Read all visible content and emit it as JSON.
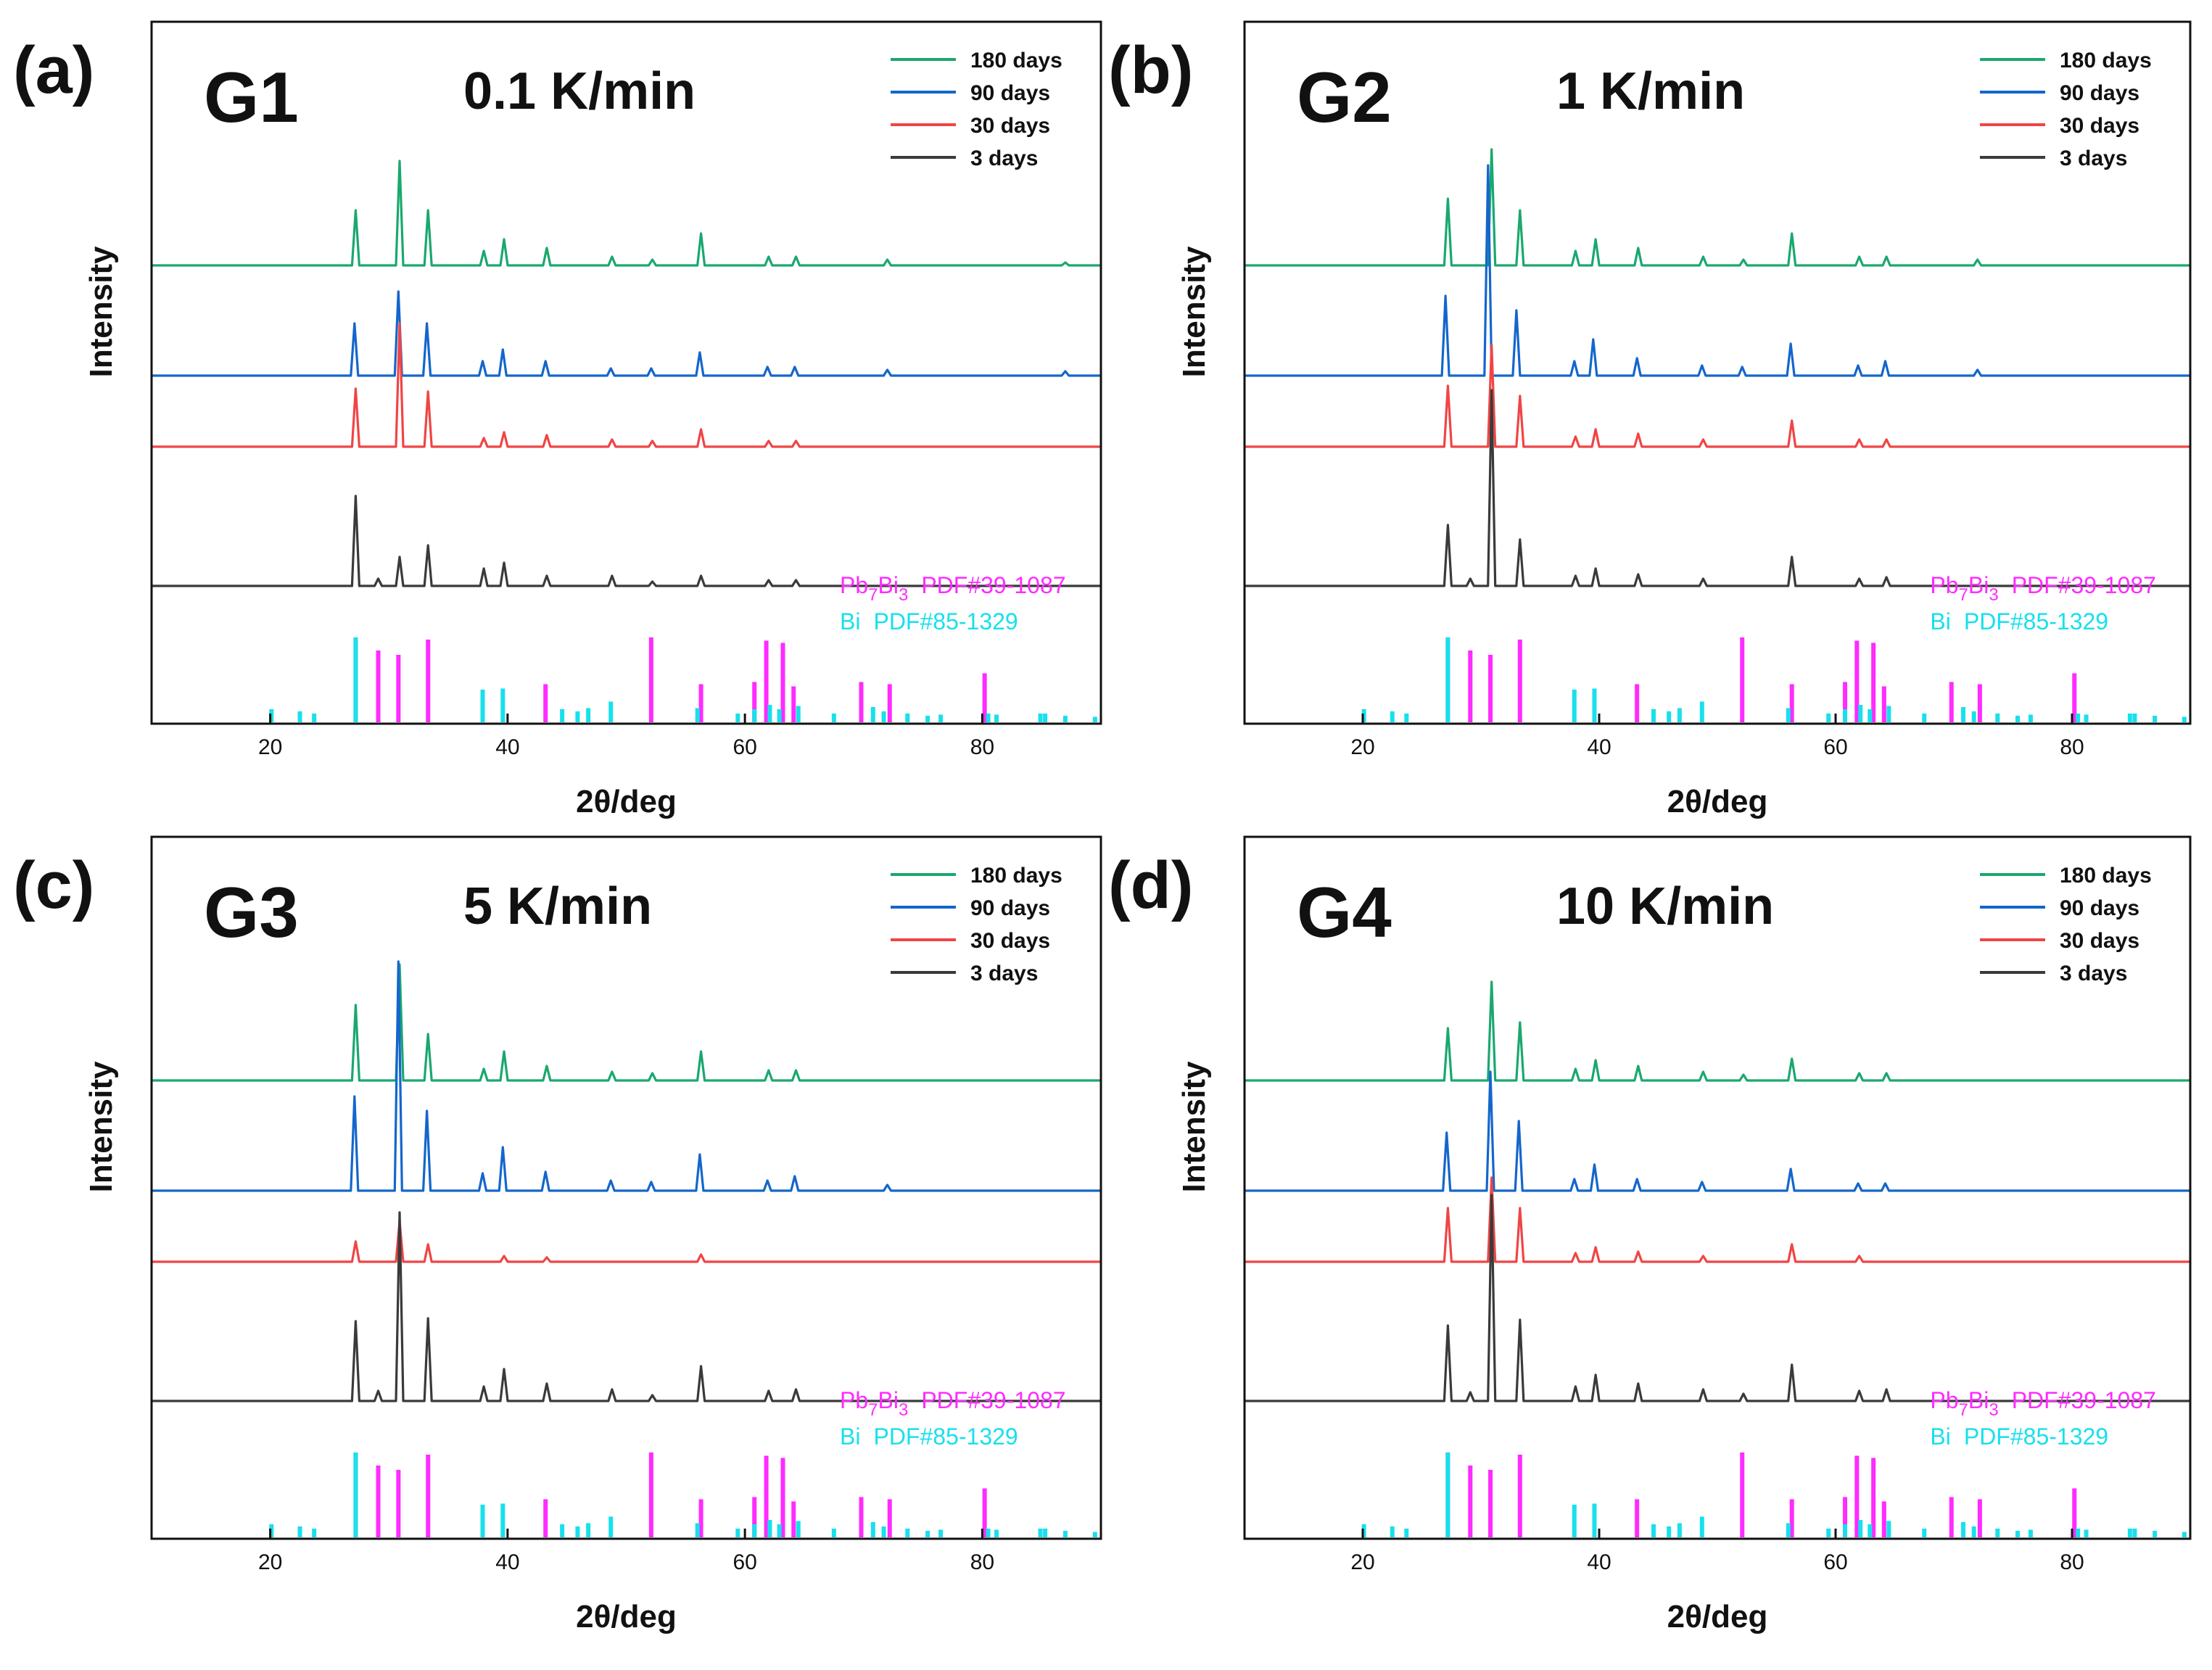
{
  "colors": {
    "180 days": "#1aa86e",
    "90 days": "#1466cc",
    "30 days": "#f04545",
    "3 days": "#3a3a3a",
    "Pb7Bi3": "#ff2bff",
    "Bi": "#18e0ec"
  },
  "reference_labels": {
    "pb7bi3_base": "Pb",
    "pb7bi3_sub1": "7",
    "pb7bi3_mid": "Bi",
    "pb7bi3_sub2": "3",
    "pb7bi3_pdf": "PDF#39-1087",
    "bi_name": "Bi",
    "bi_pdf": "PDF#85-1329"
  },
  "chart_data": [
    {
      "type": "line",
      "panel": "(a)",
      "group": "G1",
      "rate": "0.1 K/min",
      "xlabel": "2θ/deg",
      "ylabel": "Intensity",
      "xlim": [
        10,
        90
      ],
      "x_ticks": [
        "20",
        "40",
        "60",
        "80"
      ],
      "legend": [
        "180 days",
        "90 days",
        "30 days",
        "3 days"
      ],
      "series": [
        {
          "name": "180 days",
          "peaks": [
            [
              27.2,
              0.38
            ],
            [
              30.9,
              0.72
            ],
            [
              33.3,
              0.38
            ],
            [
              38.0,
              0.1
            ],
            [
              39.7,
              0.18
            ],
            [
              43.3,
              0.12
            ],
            [
              48.8,
              0.06
            ],
            [
              52.2,
              0.04
            ],
            [
              56.3,
              0.22
            ],
            [
              62.0,
              0.06
            ],
            [
              64.3,
              0.06
            ],
            [
              72.0,
              0.04
            ],
            [
              87.0,
              0.02
            ]
          ]
        },
        {
          "name": "90 days",
          "peaks": [
            [
              27.1,
              0.36
            ],
            [
              30.8,
              0.58
            ],
            [
              33.2,
              0.36
            ],
            [
              37.9,
              0.1
            ],
            [
              39.6,
              0.18
            ],
            [
              43.2,
              0.1
            ],
            [
              48.7,
              0.05
            ],
            [
              52.1,
              0.05
            ],
            [
              56.2,
              0.16
            ],
            [
              61.9,
              0.06
            ],
            [
              64.2,
              0.06
            ],
            [
              72.0,
              0.04
            ],
            [
              87.0,
              0.03
            ]
          ]
        },
        {
          "name": "30 days",
          "peaks": [
            [
              27.2,
              0.4
            ],
            [
              30.9,
              0.85
            ],
            [
              33.3,
              0.38
            ],
            [
              38.0,
              0.06
            ],
            [
              39.7,
              0.1
            ],
            [
              43.3,
              0.08
            ],
            [
              48.8,
              0.05
            ],
            [
              52.2,
              0.04
            ],
            [
              56.3,
              0.12
            ],
            [
              62.0,
              0.04
            ],
            [
              64.3,
              0.04
            ]
          ]
        },
        {
          "name": "3 days",
          "peaks": [
            [
              27.2,
              0.62
            ],
            [
              29.1,
              0.05
            ],
            [
              30.9,
              0.2
            ],
            [
              33.3,
              0.28
            ],
            [
              38.0,
              0.12
            ],
            [
              39.7,
              0.16
            ],
            [
              43.3,
              0.07
            ],
            [
              48.8,
              0.07
            ],
            [
              52.2,
              0.03
            ],
            [
              56.3,
              0.07
            ],
            [
              62.0,
              0.04
            ],
            [
              64.3,
              0.04
            ]
          ]
        }
      ]
    },
    {
      "type": "line",
      "panel": "(b)",
      "group": "G2",
      "rate": "1 K/min",
      "xlabel": "2θ/deg",
      "ylabel": "Intensity",
      "xlim": [
        10,
        90
      ],
      "x_ticks": [
        "20",
        "40",
        "60",
        "80"
      ],
      "legend": [
        "180 days",
        "90 days",
        "30 days",
        "3 days"
      ],
      "series": [
        {
          "name": "180 days",
          "peaks": [
            [
              27.2,
              0.46
            ],
            [
              30.9,
              0.8
            ],
            [
              33.3,
              0.38
            ],
            [
              38.0,
              0.1
            ],
            [
              39.7,
              0.18
            ],
            [
              43.3,
              0.12
            ],
            [
              48.8,
              0.06
            ],
            [
              52.2,
              0.04
            ],
            [
              56.3,
              0.22
            ],
            [
              62.0,
              0.06
            ],
            [
              64.3,
              0.06
            ],
            [
              72.0,
              0.04
            ]
          ]
        },
        {
          "name": "90 days",
          "peaks": [
            [
              27.0,
              0.55
            ],
            [
              30.6,
              1.45
            ],
            [
              33.0,
              0.45
            ],
            [
              37.9,
              0.1
            ],
            [
              39.5,
              0.25
            ],
            [
              43.2,
              0.12
            ],
            [
              48.7,
              0.07
            ],
            [
              52.1,
              0.06
            ],
            [
              56.2,
              0.22
            ],
            [
              61.9,
              0.07
            ],
            [
              64.2,
              0.1
            ],
            [
              72.0,
              0.04
            ]
          ]
        },
        {
          "name": "30 days",
          "peaks": [
            [
              27.2,
              0.42
            ],
            [
              30.9,
              0.7
            ],
            [
              33.3,
              0.35
            ],
            [
              38.0,
              0.07
            ],
            [
              39.7,
              0.12
            ],
            [
              43.3,
              0.09
            ],
            [
              48.8,
              0.05
            ],
            [
              56.3,
              0.18
            ],
            [
              62.0,
              0.05
            ],
            [
              64.3,
              0.05
            ]
          ]
        },
        {
          "name": "3 days",
          "peaks": [
            [
              27.2,
              0.42
            ],
            [
              29.1,
              0.05
            ],
            [
              30.9,
              1.35
            ],
            [
              33.3,
              0.32
            ],
            [
              38.0,
              0.07
            ],
            [
              39.7,
              0.12
            ],
            [
              43.3,
              0.08
            ],
            [
              48.8,
              0.05
            ],
            [
              56.3,
              0.2
            ],
            [
              62.0,
              0.05
            ],
            [
              64.3,
              0.06
            ]
          ]
        }
      ]
    },
    {
      "type": "line",
      "panel": "(c)",
      "group": "G3",
      "rate": "5 K/min",
      "xlabel": "2θ/deg",
      "ylabel": "Intensity",
      "xlim": [
        10,
        90
      ],
      "x_ticks": [
        "20",
        "40",
        "60",
        "80"
      ],
      "legend": [
        "180 days",
        "90 days",
        "30 days",
        "3 days"
      ],
      "series": [
        {
          "name": "180 days",
          "peaks": [
            [
              27.2,
              0.52
            ],
            [
              30.9,
              0.8
            ],
            [
              33.3,
              0.32
            ],
            [
              38.0,
              0.08
            ],
            [
              39.7,
              0.2
            ],
            [
              43.3,
              0.1
            ],
            [
              48.8,
              0.06
            ],
            [
              52.2,
              0.05
            ],
            [
              56.3,
              0.2
            ],
            [
              62.0,
              0.07
            ],
            [
              64.3,
              0.07
            ]
          ]
        },
        {
          "name": "90 days",
          "peaks": [
            [
              27.1,
              0.65
            ],
            [
              30.8,
              1.58
            ],
            [
              33.2,
              0.55
            ],
            [
              37.9,
              0.12
            ],
            [
              39.6,
              0.3
            ],
            [
              43.2,
              0.13
            ],
            [
              48.7,
              0.07
            ],
            [
              52.1,
              0.06
            ],
            [
              56.2,
              0.25
            ],
            [
              61.9,
              0.07
            ],
            [
              64.2,
              0.1
            ],
            [
              72.0,
              0.04
            ]
          ]
        },
        {
          "name": "30 days",
          "peaks": [
            [
              27.2,
              0.14
            ],
            [
              30.9,
              0.28
            ],
            [
              33.3,
              0.12
            ],
            [
              39.7,
              0.04
            ],
            [
              43.3,
              0.03
            ],
            [
              56.3,
              0.05
            ]
          ]
        },
        {
          "name": "3 days",
          "peaks": [
            [
              27.2,
              0.55
            ],
            [
              29.1,
              0.07
            ],
            [
              30.9,
              1.3
            ],
            [
              33.3,
              0.57
            ],
            [
              38.0,
              0.1
            ],
            [
              39.7,
              0.22
            ],
            [
              43.3,
              0.12
            ],
            [
              48.8,
              0.08
            ],
            [
              52.2,
              0.04
            ],
            [
              56.3,
              0.24
            ],
            [
              62.0,
              0.07
            ],
            [
              64.3,
              0.08
            ]
          ]
        }
      ]
    },
    {
      "type": "line",
      "panel": "(d)",
      "group": "G4",
      "rate": "10 K/min",
      "xlabel": "2θ/deg",
      "ylabel": "Intensity",
      "xlim": [
        10,
        90
      ],
      "x_ticks": [
        "20",
        "40",
        "60",
        "80"
      ],
      "legend": [
        "180 days",
        "90 days",
        "30 days",
        "3 days"
      ],
      "series": [
        {
          "name": "180 days",
          "peaks": [
            [
              27.2,
              0.36
            ],
            [
              30.9,
              0.68
            ],
            [
              33.3,
              0.4
            ],
            [
              38.0,
              0.08
            ],
            [
              39.7,
              0.14
            ],
            [
              43.3,
              0.1
            ],
            [
              48.8,
              0.06
            ],
            [
              52.2,
              0.04
            ],
            [
              56.3,
              0.15
            ],
            [
              62.0,
              0.05
            ],
            [
              64.3,
              0.05
            ]
          ]
        },
        {
          "name": "90 days",
          "peaks": [
            [
              27.1,
              0.4
            ],
            [
              30.8,
              0.82
            ],
            [
              33.2,
              0.48
            ],
            [
              37.9,
              0.08
            ],
            [
              39.6,
              0.18
            ],
            [
              43.2,
              0.08
            ],
            [
              48.7,
              0.06
            ],
            [
              56.2,
              0.15
            ],
            [
              61.9,
              0.05
            ],
            [
              64.2,
              0.05
            ]
          ]
        },
        {
          "name": "30 days",
          "peaks": [
            [
              27.2,
              0.37
            ],
            [
              30.9,
              0.58
            ],
            [
              33.3,
              0.37
            ],
            [
              38.0,
              0.06
            ],
            [
              39.7,
              0.1
            ],
            [
              43.3,
              0.07
            ],
            [
              48.8,
              0.04
            ],
            [
              56.3,
              0.12
            ],
            [
              62.0,
              0.04
            ]
          ]
        },
        {
          "name": "3 days",
          "peaks": [
            [
              27.2,
              0.52
            ],
            [
              29.1,
              0.06
            ],
            [
              30.9,
              1.42
            ],
            [
              33.3,
              0.56
            ],
            [
              38.0,
              0.1
            ],
            [
              39.7,
              0.18
            ],
            [
              43.3,
              0.12
            ],
            [
              48.8,
              0.08
            ],
            [
              52.2,
              0.05
            ],
            [
              56.3,
              0.25
            ],
            [
              62.0,
              0.07
            ],
            [
              64.3,
              0.08
            ]
          ]
        }
      ]
    }
  ],
  "reference_patterns": {
    "Pb7Bi3": {
      "name": "Pb7Bi3 PDF#39-1087",
      "peaks": [
        [
          27.2,
          0.78
        ],
        [
          29.1,
          0.66
        ],
        [
          30.8,
          0.62
        ],
        [
          33.3,
          0.76
        ],
        [
          43.2,
          0.35
        ],
        [
          52.1,
          0.78
        ],
        [
          56.3,
          0.35
        ],
        [
          60.8,
          0.37
        ],
        [
          61.8,
          0.75
        ],
        [
          63.2,
          0.73
        ],
        [
          64.1,
          0.33
        ],
        [
          69.8,
          0.37
        ],
        [
          72.2,
          0.35
        ],
        [
          80.2,
          0.45
        ]
      ]
    },
    "Bi": {
      "name": "Bi PDF#85-1329",
      "peaks": [
        [
          20.1,
          0.12
        ],
        [
          22.5,
          0.1
        ],
        [
          23.7,
          0.08
        ],
        [
          27.2,
          0.78
        ],
        [
          37.9,
          0.3
        ],
        [
          39.6,
          0.31
        ],
        [
          44.6,
          0.12
        ],
        [
          45.9,
          0.1
        ],
        [
          46.8,
          0.13
        ],
        [
          48.7,
          0.19
        ],
        [
          56.0,
          0.13
        ],
        [
          59.4,
          0.08
        ],
        [
          60.8,
          0.12
        ],
        [
          62.1,
          0.16
        ],
        [
          62.9,
          0.12
        ],
        [
          64.5,
          0.15
        ],
        [
          67.5,
          0.08
        ],
        [
          70.8,
          0.14
        ],
        [
          71.7,
          0.1
        ],
        [
          73.7,
          0.08
        ],
        [
          75.4,
          0.06
        ],
        [
          76.5,
          0.07
        ],
        [
          80.5,
          0.08
        ],
        [
          81.2,
          0.07
        ],
        [
          84.9,
          0.08
        ],
        [
          85.3,
          0.08
        ],
        [
          87.0,
          0.06
        ],
        [
          89.5,
          0.05
        ]
      ]
    }
  }
}
